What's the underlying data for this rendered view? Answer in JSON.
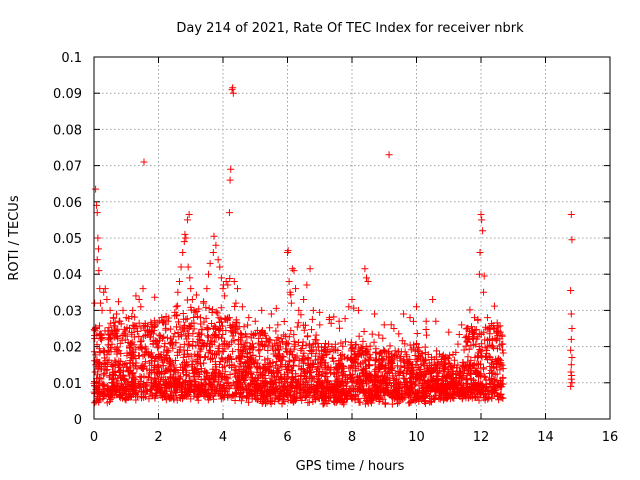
{
  "chart_data": {
    "type": "scatter",
    "title": "Day 214 of 2021, Rate Of TEC Index for receiver nbrk",
    "xlabel": "GPS time / hours",
    "ylabel": "ROTI / TECUs",
    "xlim": [
      0,
      16
    ],
    "ylim": [
      0,
      0.1
    ],
    "xticks": [
      "0",
      "2",
      "4",
      "6",
      "8",
      "10",
      "12",
      "14",
      "16"
    ],
    "yticks": [
      "0",
      "0.01",
      "0.02",
      "0.03",
      "0.04",
      "0.05",
      "0.06",
      "0.07",
      "0.08",
      "0.09",
      "0.1"
    ],
    "grid": true,
    "marker": "+",
    "color": "#ff0000",
    "series": [
      {
        "name": "nbrk",
        "points": [
          [
            0.02,
            0.032
          ],
          [
            0.05,
            0.0635
          ],
          [
            0.08,
            0.059
          ],
          [
            0.1,
            0.057
          ],
          [
            0.12,
            0.05
          ],
          [
            0.14,
            0.047
          ],
          [
            0.1,
            0.044
          ],
          [
            0.15,
            0.041
          ],
          [
            0.18,
            0.036
          ],
          [
            0.2,
            0.032
          ],
          [
            0.25,
            0.03
          ],
          [
            0.3,
            0.035
          ],
          [
            0.35,
            0.036
          ],
          [
            0.4,
            0.033
          ],
          [
            0.5,
            0.03
          ],
          [
            0.6,
            0.028
          ],
          [
            0.7,
            0.029
          ],
          [
            0.8,
            0.027
          ],
          [
            0.9,
            0.03
          ],
          [
            1.0,
            0.028
          ],
          [
            1.1,
            0.025
          ],
          [
            1.2,
            0.03
          ],
          [
            1.3,
            0.034
          ],
          [
            1.4,
            0.033
          ],
          [
            1.45,
            0.031
          ],
          [
            1.52,
            0.036
          ],
          [
            1.55,
            0.071
          ],
          [
            1.7,
            0.024
          ],
          [
            1.9,
            0.026
          ],
          [
            2.1,
            0.028
          ],
          [
            2.3,
            0.027
          ],
          [
            2.55,
            0.031
          ],
          [
            2.6,
            0.035
          ],
          [
            2.65,
            0.038
          ],
          [
            2.7,
            0.042
          ],
          [
            2.75,
            0.046
          ],
          [
            2.8,
            0.049
          ],
          [
            2.82,
            0.051
          ],
          [
            2.85,
            0.05
          ],
          [
            2.9,
            0.055
          ],
          [
            2.95,
            0.0565
          ],
          [
            2.92,
            0.042
          ],
          [
            2.97,
            0.039
          ],
          [
            3.0,
            0.036
          ],
          [
            3.05,
            0.033
          ],
          [
            3.1,
            0.03
          ],
          [
            3.3,
            0.028
          ],
          [
            3.4,
            0.032
          ],
          [
            3.5,
            0.036
          ],
          [
            3.55,
            0.04
          ],
          [
            3.6,
            0.043
          ],
          [
            3.7,
            0.046
          ],
          [
            3.72,
            0.0505
          ],
          [
            3.78,
            0.048
          ],
          [
            3.85,
            0.044
          ],
          [
            3.9,
            0.042
          ],
          [
            3.95,
            0.039
          ],
          [
            4.0,
            0.036
          ],
          [
            4.05,
            0.034
          ],
          [
            4.1,
            0.038
          ],
          [
            4.15,
            0.037
          ],
          [
            4.2,
            0.057
          ],
          [
            4.22,
            0.066
          ],
          [
            4.24,
            0.069
          ],
          [
            4.28,
            0.091
          ],
          [
            4.3,
            0.0915
          ],
          [
            4.32,
            0.09
          ],
          [
            4.35,
            0.038
          ],
          [
            4.4,
            0.032
          ],
          [
            4.45,
            0.036
          ],
          [
            4.6,
            0.031
          ],
          [
            4.8,
            0.028
          ],
          [
            5.0,
            0.027
          ],
          [
            5.2,
            0.03
          ],
          [
            5.5,
            0.029
          ],
          [
            5.7,
            0.026
          ],
          [
            6.0,
            0.046
          ],
          [
            6.02,
            0.0465
          ],
          [
            6.05,
            0.038
          ],
          [
            6.08,
            0.035
          ],
          [
            6.12,
            0.032
          ],
          [
            6.15,
            0.0415
          ],
          [
            6.2,
            0.041
          ],
          [
            6.25,
            0.036
          ],
          [
            6.35,
            0.03
          ],
          [
            6.5,
            0.033
          ],
          [
            6.6,
            0.037
          ],
          [
            6.7,
            0.0415
          ],
          [
            6.8,
            0.03
          ],
          [
            7.0,
            0.026
          ],
          [
            7.3,
            0.028
          ],
          [
            7.6,
            0.027
          ],
          [
            7.9,
            0.031
          ],
          [
            8.0,
            0.033
          ],
          [
            8.2,
            0.03
          ],
          [
            8.4,
            0.0415
          ],
          [
            8.45,
            0.039
          ],
          [
            8.5,
            0.038
          ],
          [
            8.7,
            0.029
          ],
          [
            9.0,
            0.026
          ],
          [
            9.15,
            0.073
          ],
          [
            9.3,
            0.025
          ],
          [
            9.6,
            0.029
          ],
          [
            9.8,
            0.028
          ],
          [
            10.0,
            0.031
          ],
          [
            10.3,
            0.027
          ],
          [
            10.5,
            0.033
          ],
          [
            10.6,
            0.027
          ],
          [
            11.0,
            0.024
          ],
          [
            11.4,
            0.026
          ],
          [
            11.8,
            0.028
          ],
          [
            11.95,
            0.04
          ],
          [
            11.97,
            0.046
          ],
          [
            12.0,
            0.0565
          ],
          [
            12.02,
            0.055
          ],
          [
            12.05,
            0.052
          ],
          [
            12.08,
            0.035
          ],
          [
            12.1,
            0.0395
          ],
          [
            12.2,
            0.028
          ],
          [
            12.4,
            0.025
          ],
          [
            12.6,
            0.024
          ],
          [
            14.8,
            0.0565
          ],
          [
            14.82,
            0.0495
          ],
          [
            14.78,
            0.0355
          ],
          [
            14.8,
            0.029
          ],
          [
            14.82,
            0.025
          ],
          [
            14.8,
            0.022
          ],
          [
            14.78,
            0.019
          ],
          [
            14.82,
            0.017
          ],
          [
            14.8,
            0.015
          ],
          [
            14.79,
            0.013
          ],
          [
            14.81,
            0.012
          ],
          [
            14.8,
            0.011
          ],
          [
            14.82,
            0.01
          ],
          [
            14.78,
            0.009
          ]
        ]
      }
    ],
    "dense_band": {
      "segments": [
        {
          "x": [
            0.0,
            0.5
          ],
          "base": [
            0.004,
            0.018
          ],
          "spread": 0.014
        },
        {
          "x": [
            0.5,
            2.5
          ],
          "base": [
            0.005,
            0.02
          ],
          "spread": 0.012
        },
        {
          "x": [
            2.5,
            4.5
          ],
          "base": [
            0.005,
            0.022
          ],
          "spread": 0.015
        },
        {
          "x": [
            4.5,
            7.0
          ],
          "base": [
            0.004,
            0.018
          ],
          "spread": 0.012
        },
        {
          "x": [
            7.0,
            10.5
          ],
          "base": [
            0.004,
            0.014
          ],
          "spread": 0.01
        },
        {
          "x": [
            10.5,
            11.5
          ],
          "base": [
            0.005,
            0.012
          ],
          "spread": 0.008
        },
        {
          "x": [
            11.5,
            12.7
          ],
          "base": [
            0.005,
            0.02
          ],
          "spread": 0.01
        }
      ]
    }
  }
}
